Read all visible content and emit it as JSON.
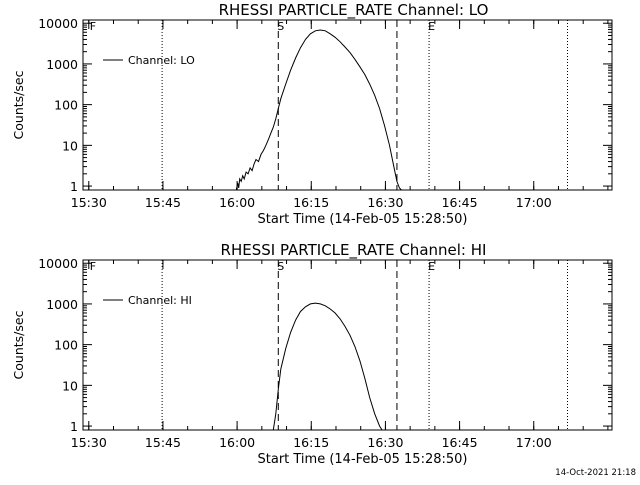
{
  "chart_data": [
    {
      "type": "line",
      "title": "RHESSI PARTICLE_RATE Channel: LO",
      "xlabel": "Start Time (14-Feb-05 15:28:50)",
      "ylabel": "Counts/sec",
      "yscale": "log",
      "xlim_min": [
        0,
        107
      ],
      "ylim": [
        0.8,
        12000
      ],
      "xticks_min": [
        1.17,
        16.17,
        31.17,
        46.17,
        61.17,
        76.17,
        91.17
      ],
      "xtick_labels": [
        "15:30",
        "15:45",
        "16:00",
        "16:15",
        "16:30",
        "16:45",
        "17:00"
      ],
      "yticks": [
        1,
        10,
        100,
        1000,
        10000
      ],
      "ytick_labels": [
        "1",
        "10",
        "100",
        "1000",
        "10000"
      ],
      "legend": "Channel: LO",
      "grid": false,
      "x_unit": "minutes since start time",
      "dotted_lines_min": [
        16.0,
        70.0,
        98.0
      ],
      "dashed_lines_min": [
        39.5,
        63.5
      ],
      "markers": [
        {
          "label": "F",
          "x_min": 2.0
        },
        {
          "label": "S",
          "x_min": 40.0
        },
        {
          "label": "E",
          "x_min": 70.5
        }
      ],
      "series": [
        {
          "name": "Channel: LO",
          "x": [
            31.0,
            31.3,
            31.5,
            31.7,
            32.0,
            32.3,
            32.6,
            33.0,
            33.4,
            33.8,
            34.2,
            34.6,
            35.0,
            35.5,
            36.0,
            36.5,
            37.0,
            37.5,
            38.0,
            38.5,
            39.0,
            39.5,
            40.0,
            41.0,
            42.0,
            43.0,
            44.0,
            45.0,
            46.0,
            47.0,
            48.0,
            49.0,
            50.0,
            51.0,
            52.0,
            53.0,
            54.0,
            55.0,
            56.0,
            57.0,
            58.0,
            59.0,
            60.0,
            61.0,
            62.0,
            62.5,
            63.0,
            63.5,
            64.0,
            64.4
          ],
          "y": [
            0.8,
            1.2,
            0.9,
            1.5,
            1.3,
            1.8,
            1.5,
            2.2,
            2.0,
            2.8,
            2.4,
            3.5,
            4.5,
            4.0,
            6.0,
            7.5,
            10,
            14,
            20,
            28,
            45,
            80,
            140,
            320,
            700,
            1400,
            2500,
            4000,
            5500,
            6500,
            6800,
            6500,
            5500,
            4500,
            3500,
            2600,
            1900,
            1300,
            850,
            550,
            320,
            170,
            80,
            30,
            10,
            5,
            2.5,
            1.3,
            0.9,
            0.8
          ]
        }
      ]
    },
    {
      "type": "line",
      "title": "RHESSI PARTICLE_RATE Channel: HI",
      "xlabel": "Start Time (14-Feb-05 15:28:50)",
      "ylabel": "Counts/sec",
      "yscale": "log",
      "xlim_min": [
        0,
        107
      ],
      "ylim": [
        0.8,
        12000
      ],
      "xticks_min": [
        1.17,
        16.17,
        31.17,
        46.17,
        61.17,
        76.17,
        91.17
      ],
      "xtick_labels": [
        "15:30",
        "15:45",
        "16:00",
        "16:15",
        "16:30",
        "16:45",
        "17:00"
      ],
      "yticks": [
        1,
        10,
        100,
        1000,
        10000
      ],
      "ytick_labels": [
        "1",
        "10",
        "100",
        "1000",
        "10000"
      ],
      "legend": "Channel: HI",
      "grid": false,
      "x_unit": "minutes since start time",
      "dotted_lines_min": [
        16.0,
        70.0,
        98.0
      ],
      "dashed_lines_min": [
        39.5,
        63.5
      ],
      "markers": [
        {
          "label": "F",
          "x_min": 2.0
        },
        {
          "label": "S",
          "x_min": 40.0
        },
        {
          "label": "E",
          "x_min": 70.5
        }
      ],
      "series": [
        {
          "name": "Channel: HI",
          "x": [
            38.5,
            39.0,
            39.5,
            40.0,
            41.0,
            42.0,
            43.0,
            44.0,
            45.0,
            46.0,
            47.0,
            48.0,
            49.0,
            50.0,
            51.0,
            52.0,
            53.0,
            54.0,
            55.0,
            56.0,
            57.0,
            58.0,
            59.0,
            60.0,
            60.5
          ],
          "y": [
            0.8,
            2.0,
            8.0,
            25,
            80,
            200,
            400,
            650,
            850,
            1000,
            1050,
            1000,
            900,
            750,
            600,
            430,
            280,
            170,
            90,
            40,
            15,
            5,
            2.0,
            1.0,
            0.8
          ]
        }
      ]
    }
  ],
  "timestamp": "14-Oct-2021 21:18"
}
